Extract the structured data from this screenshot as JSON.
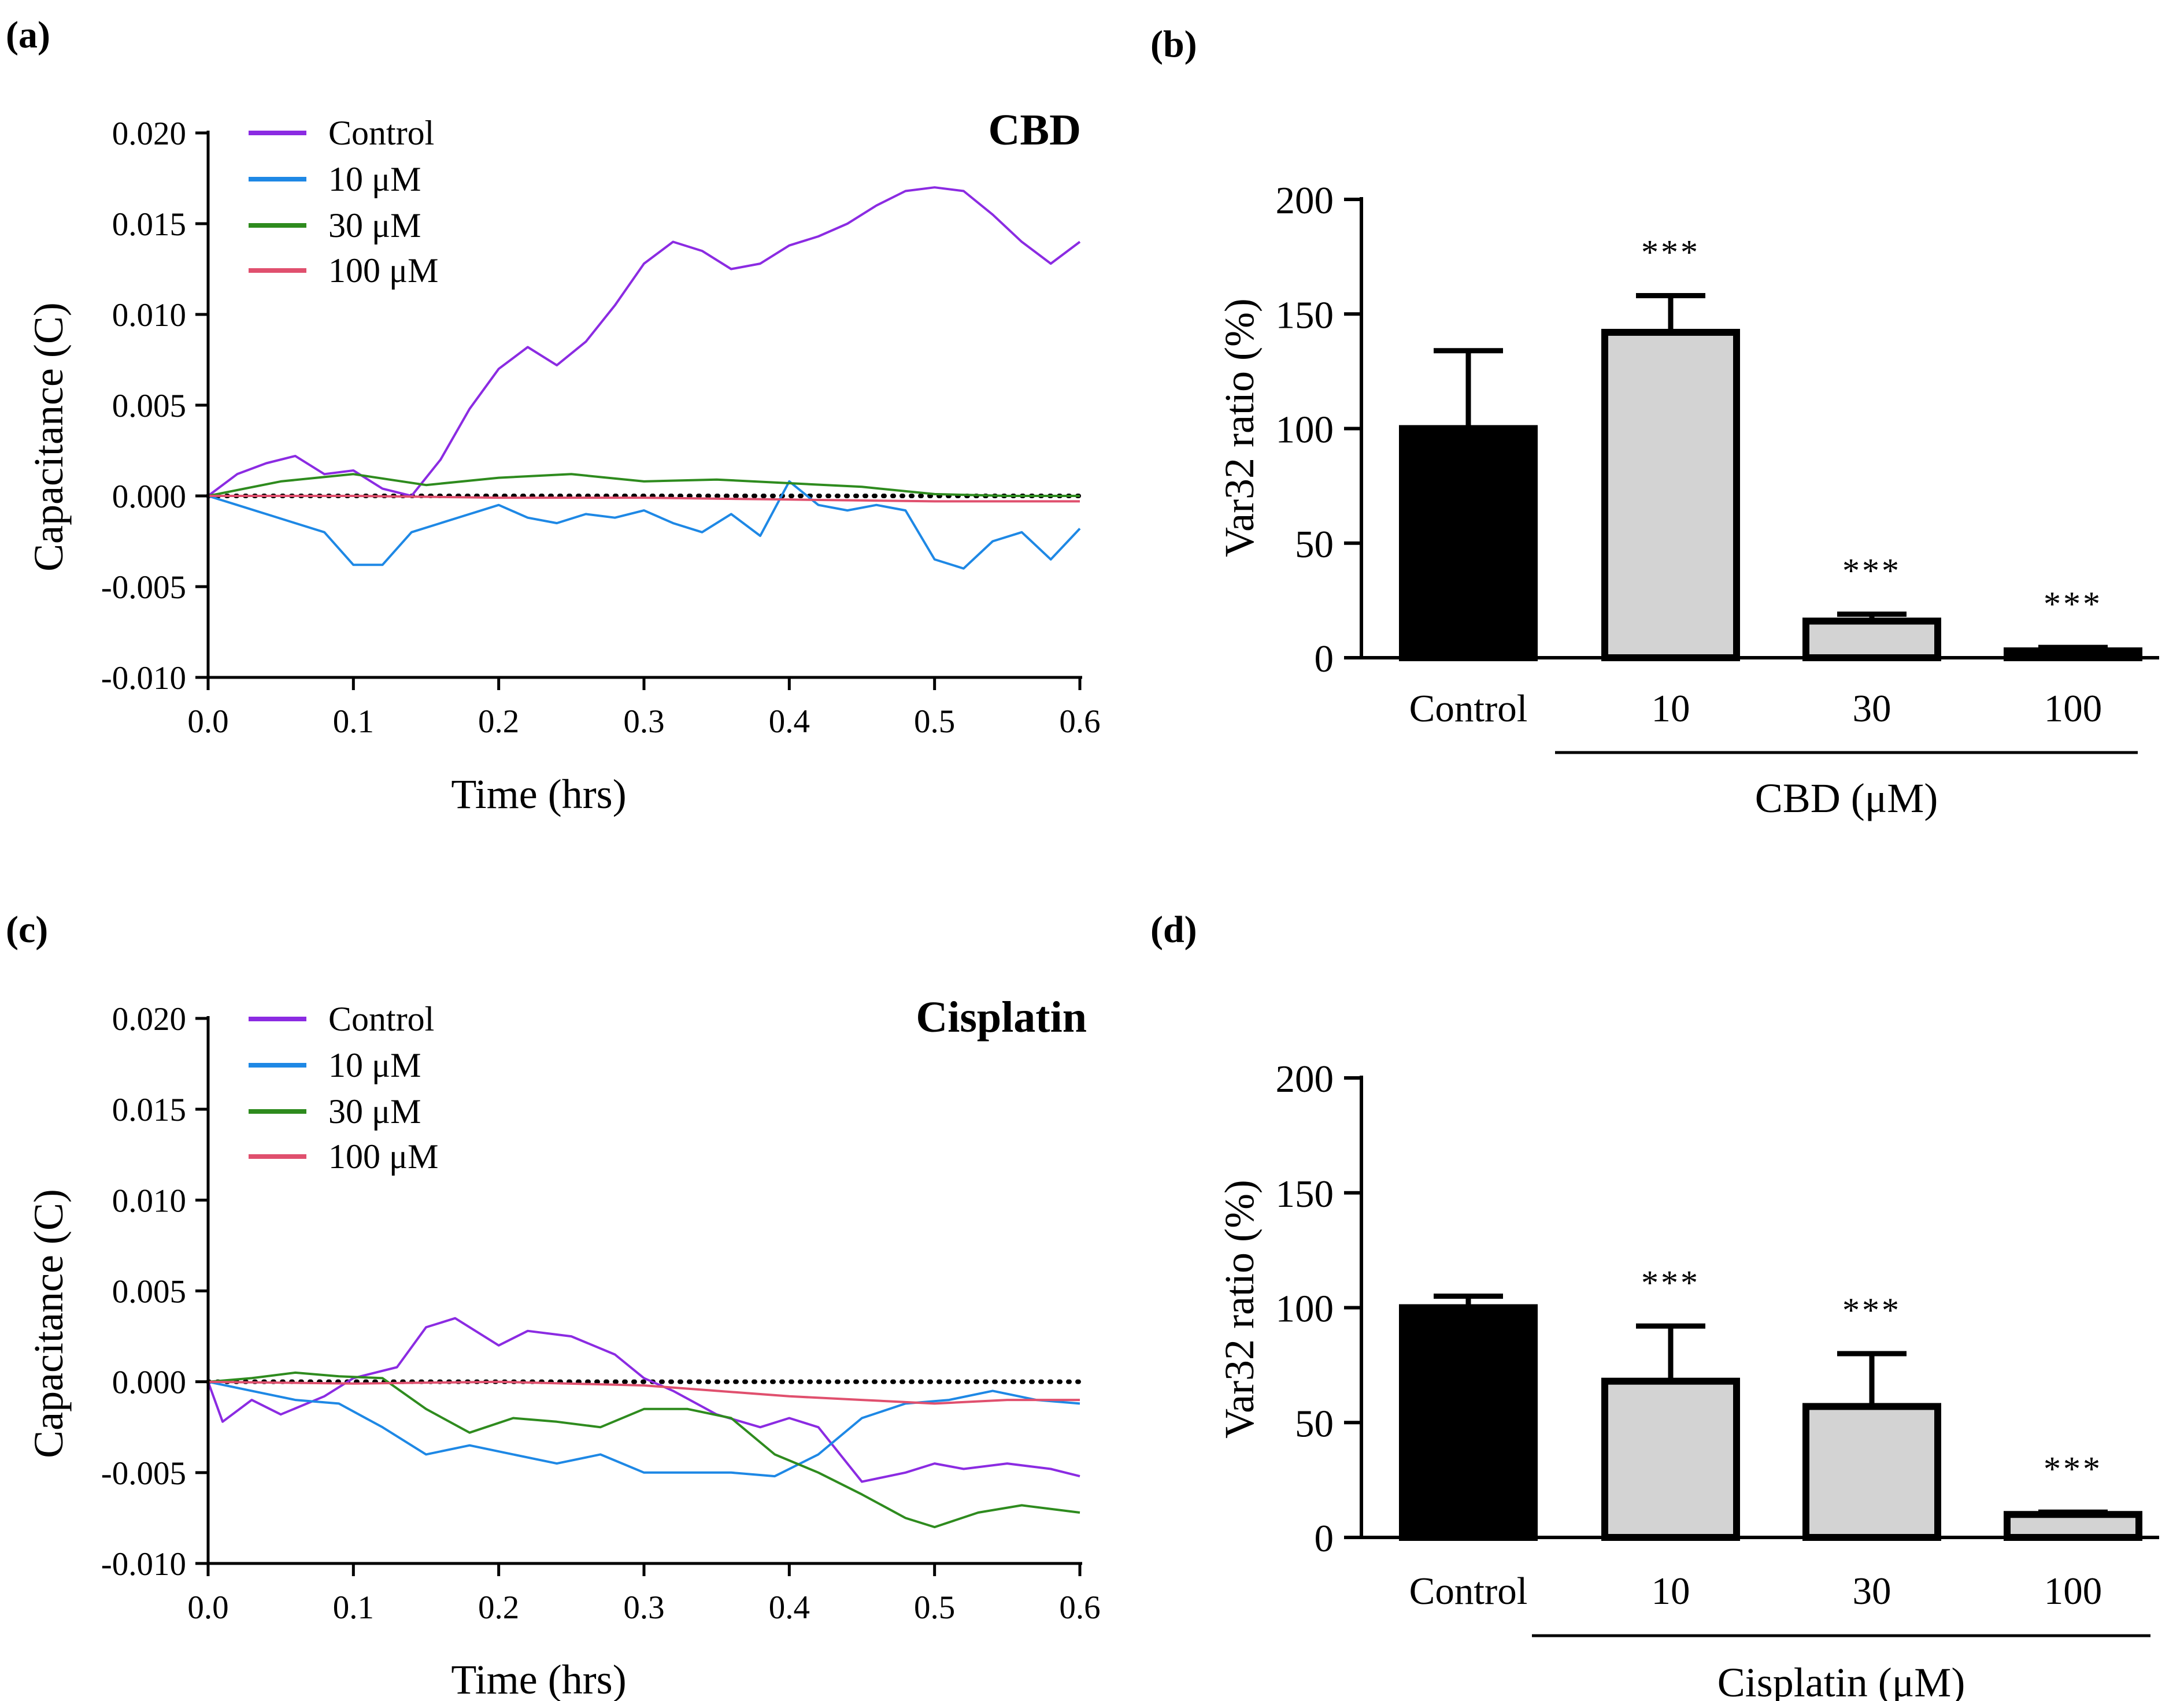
{
  "figure": {
    "panels": [
      "(a)",
      "(b)",
      "(c)",
      "(d)"
    ]
  },
  "colors": {
    "control": "#8b2be2",
    "uM10": "#1e88e5",
    "uM30": "#2e8b1e",
    "uM100": "#e0506e",
    "control_bar": "#000000",
    "treated_bar": "#d3d3d3"
  },
  "chart_data": [
    {
      "id": "a",
      "type": "line",
      "title": "CBD",
      "xlabel": "Time (hrs)",
      "ylabel": "Capacitance (C)",
      "xlim": [
        0,
        0.6
      ],
      "ylim": [
        -0.01,
        0.02
      ],
      "xticks": [
        "0.0",
        "0.1",
        "0.2",
        "0.3",
        "0.4",
        "0.5",
        "0.6"
      ],
      "yticks": [
        "0.020",
        "0.015",
        "0.010",
        "0.005",
        "0.000",
        "-0.005",
        "-0.010"
      ],
      "legend": [
        "Control",
        "10 μM",
        "30 μM",
        "100 μM"
      ],
      "baseline": 0,
      "series": [
        {
          "name": "Control",
          "color_key": "control",
          "x": [
            0,
            0.02,
            0.04,
            0.06,
            0.08,
            0.1,
            0.12,
            0.14,
            0.16,
            0.18,
            0.2,
            0.22,
            0.24,
            0.26,
            0.28,
            0.3,
            0.32,
            0.34,
            0.36,
            0.38,
            0.4,
            0.42,
            0.44,
            0.46,
            0.48,
            0.5,
            0.52,
            0.54,
            0.56,
            0.58,
            0.6
          ],
          "y": [
            0,
            0.0012,
            0.0018,
            0.0022,
            0.0012,
            0.0014,
            0.0004,
            0.0,
            0.002,
            0.0048,
            0.007,
            0.0082,
            0.0072,
            0.0085,
            0.0105,
            0.0128,
            0.014,
            0.0135,
            0.0125,
            0.0128,
            0.0138,
            0.0143,
            0.015,
            0.016,
            0.0168,
            0.017,
            0.0168,
            0.0155,
            0.014,
            0.0128,
            0.014
          ]
        },
        {
          "name": "10 μM",
          "color_key": "uM10",
          "x": [
            0,
            0.02,
            0.04,
            0.06,
            0.08,
            0.1,
            0.12,
            0.14,
            0.16,
            0.18,
            0.2,
            0.22,
            0.24,
            0.26,
            0.28,
            0.3,
            0.32,
            0.34,
            0.36,
            0.38,
            0.4,
            0.42,
            0.44,
            0.46,
            0.48,
            0.5,
            0.52,
            0.54,
            0.56,
            0.58,
            0.6
          ],
          "y": [
            0,
            -0.0005,
            -0.001,
            -0.0015,
            -0.002,
            -0.0038,
            -0.0038,
            -0.002,
            -0.0015,
            -0.001,
            -0.0005,
            -0.0012,
            -0.0015,
            -0.001,
            -0.0012,
            -0.0008,
            -0.0015,
            -0.002,
            -0.001,
            -0.0022,
            0.0008,
            -0.0005,
            -0.0008,
            -0.0005,
            -0.0008,
            -0.0035,
            -0.004,
            -0.0025,
            -0.002,
            -0.0035,
            -0.0018
          ]
        },
        {
          "name": "30 μM",
          "color_key": "uM30",
          "x": [
            0,
            0.05,
            0.1,
            0.15,
            0.2,
            0.25,
            0.3,
            0.35,
            0.4,
            0.45,
            0.5,
            0.55,
            0.6
          ],
          "y": [
            0,
            0.0008,
            0.0012,
            0.0006,
            0.001,
            0.0012,
            0.0008,
            0.0009,
            0.0007,
            0.0005,
            0.0001,
            0,
            0
          ]
        },
        {
          "name": "100 μM",
          "color_key": "uM100",
          "x": [
            0,
            0.1,
            0.2,
            0.3,
            0.4,
            0.5,
            0.6
          ],
          "y": [
            0,
            0,
            -0.0001,
            -0.0001,
            -0.0002,
            -0.0003,
            -0.0003
          ]
        }
      ]
    },
    {
      "id": "b",
      "type": "bar",
      "categories": [
        "Control",
        "10",
        "30",
        "100"
      ],
      "values": [
        100,
        142,
        16,
        3
      ],
      "errors": [
        34,
        16,
        3,
        1.5
      ],
      "significance": [
        "",
        "***",
        "***",
        "***"
      ],
      "ylabel": "Var32 ratio (%)",
      "xlabel": "CBD (μM)",
      "ylim": [
        0,
        200
      ],
      "yticks": [
        "200",
        "150",
        "100",
        "50",
        "0"
      ]
    },
    {
      "id": "c",
      "type": "line",
      "title": "Cisplatin",
      "xlabel": "Time (hrs)",
      "ylabel": "Capacitance (C)",
      "xlim": [
        0,
        0.6
      ],
      "ylim": [
        -0.01,
        0.02
      ],
      "xticks": [
        "0.0",
        "0.1",
        "0.2",
        "0.3",
        "0.4",
        "0.5",
        "0.6"
      ],
      "yticks": [
        "0.020",
        "0.015",
        "0.010",
        "0.005",
        "0.000",
        "-0.005",
        "-0.010"
      ],
      "legend": [
        "Control",
        "10 μM",
        "30 μM",
        "100 μM"
      ],
      "baseline": 0,
      "series": [
        {
          "name": "Control",
          "color_key": "control",
          "x": [
            0,
            0.01,
            0.03,
            0.05,
            0.08,
            0.1,
            0.13,
            0.15,
            0.17,
            0.2,
            0.22,
            0.25,
            0.28,
            0.3,
            0.32,
            0.35,
            0.38,
            0.4,
            0.42,
            0.45,
            0.48,
            0.5,
            0.52,
            0.55,
            0.58,
            0.6
          ],
          "y": [
            0,
            -0.0022,
            -0.001,
            -0.0018,
            -0.0008,
            0.0002,
            0.0008,
            0.003,
            0.0035,
            0.002,
            0.0028,
            0.0025,
            0.0015,
            0.0002,
            -0.0005,
            -0.0018,
            -0.0025,
            -0.002,
            -0.0025,
            -0.0055,
            -0.005,
            -0.0045,
            -0.0048,
            -0.0045,
            -0.0048,
            -0.0052
          ]
        },
        {
          "name": "10 μM",
          "color_key": "uM10",
          "x": [
            0,
            0.03,
            0.06,
            0.09,
            0.12,
            0.15,
            0.18,
            0.21,
            0.24,
            0.27,
            0.3,
            0.33,
            0.36,
            0.39,
            0.42,
            0.45,
            0.48,
            0.51,
            0.54,
            0.57,
            0.6
          ],
          "y": [
            0,
            -0.0005,
            -0.001,
            -0.0012,
            -0.0025,
            -0.004,
            -0.0035,
            -0.004,
            -0.0045,
            -0.004,
            -0.005,
            -0.005,
            -0.005,
            -0.0052,
            -0.004,
            -0.002,
            -0.0012,
            -0.001,
            -0.0005,
            -0.001,
            -0.0012
          ]
        },
        {
          "name": "30 μM",
          "color_key": "uM30",
          "x": [
            0,
            0.03,
            0.06,
            0.09,
            0.12,
            0.15,
            0.18,
            0.21,
            0.24,
            0.27,
            0.3,
            0.33,
            0.36,
            0.39,
            0.42,
            0.45,
            0.48,
            0.5,
            0.53,
            0.56,
            0.6
          ],
          "y": [
            0,
            0.0002,
            0.0005,
            0.0003,
            0.0002,
            -0.0015,
            -0.0028,
            -0.002,
            -0.0022,
            -0.0025,
            -0.0015,
            -0.0015,
            -0.002,
            -0.004,
            -0.005,
            -0.0062,
            -0.0075,
            -0.008,
            -0.0072,
            -0.0068,
            -0.0072
          ]
        },
        {
          "name": "100 μM",
          "color_key": "uM100",
          "x": [
            0,
            0.1,
            0.2,
            0.3,
            0.35,
            0.4,
            0.45,
            0.5,
            0.55,
            0.6
          ],
          "y": [
            0,
            -0.0001,
            0,
            -0.0002,
            -0.0005,
            -0.0008,
            -0.001,
            -0.0012,
            -0.001,
            -0.001
          ]
        }
      ]
    },
    {
      "id": "d",
      "type": "bar",
      "categories": [
        "Control",
        "10",
        "30",
        "100"
      ],
      "values": [
        100,
        68,
        57,
        10
      ],
      "errors": [
        5,
        24,
        23,
        1
      ],
      "significance": [
        "",
        "***",
        "***",
        "***"
      ],
      "ylabel": "Var32 ratio (%)",
      "xlabel": "Cisplatin (μM)",
      "ylim": [
        0,
        200
      ],
      "yticks": [
        "200",
        "150",
        "100",
        "50",
        "0"
      ]
    }
  ]
}
